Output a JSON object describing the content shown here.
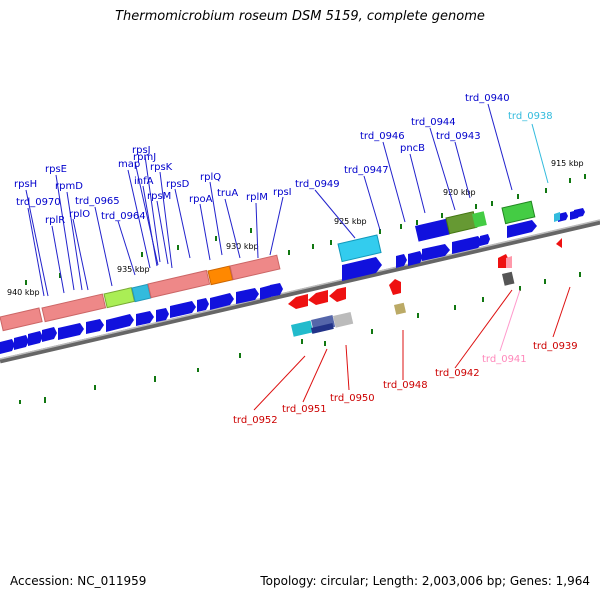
{
  "title": "Thermomicrobium roseum DSM 5159, complete genome",
  "footer": {
    "accession": "Accession: NC_011959",
    "summary": "Topology: circular; Length: 2,003,006 bp; Genes: 1,964"
  },
  "colors": {
    "forward": "#0000dd",
    "reverse": "#ee0000",
    "backbone": "#888888",
    "tick": "#117711",
    "cds_pink": "#ee8888",
    "rrna_cyan": "#33bbdd",
    "trna_green": "#44cc44",
    "orange": "#ff8800"
  },
  "kbp_labels": [
    "915 kbp",
    "920 kbp",
    "925 kbp",
    "930 kbp",
    "935 kbp",
    "940 kbp"
  ],
  "forward_labels": [
    "trd_0940",
    "trd_0938",
    "trd_0944",
    "trd_0946",
    "trd_0943",
    "pncB",
    "trd_0947",
    "trd_0949",
    "rpsJ",
    "map",
    "rpsK",
    "rpsE",
    "infA",
    "rpsD",
    "rplQ",
    "rpsH",
    "rpmD",
    "rpsM",
    "truA",
    "rpmJ",
    "rplM",
    "rpsI",
    "trd_0970",
    "trd_0965",
    "trd_0964",
    "rpoA",
    "rplR",
    "rplO"
  ],
  "reverse_labels": [
    "trd_0952",
    "trd_0951",
    "trd_0950",
    "trd_0948",
    "trd_0942",
    "trd_0941",
    "trd_0939"
  ]
}
